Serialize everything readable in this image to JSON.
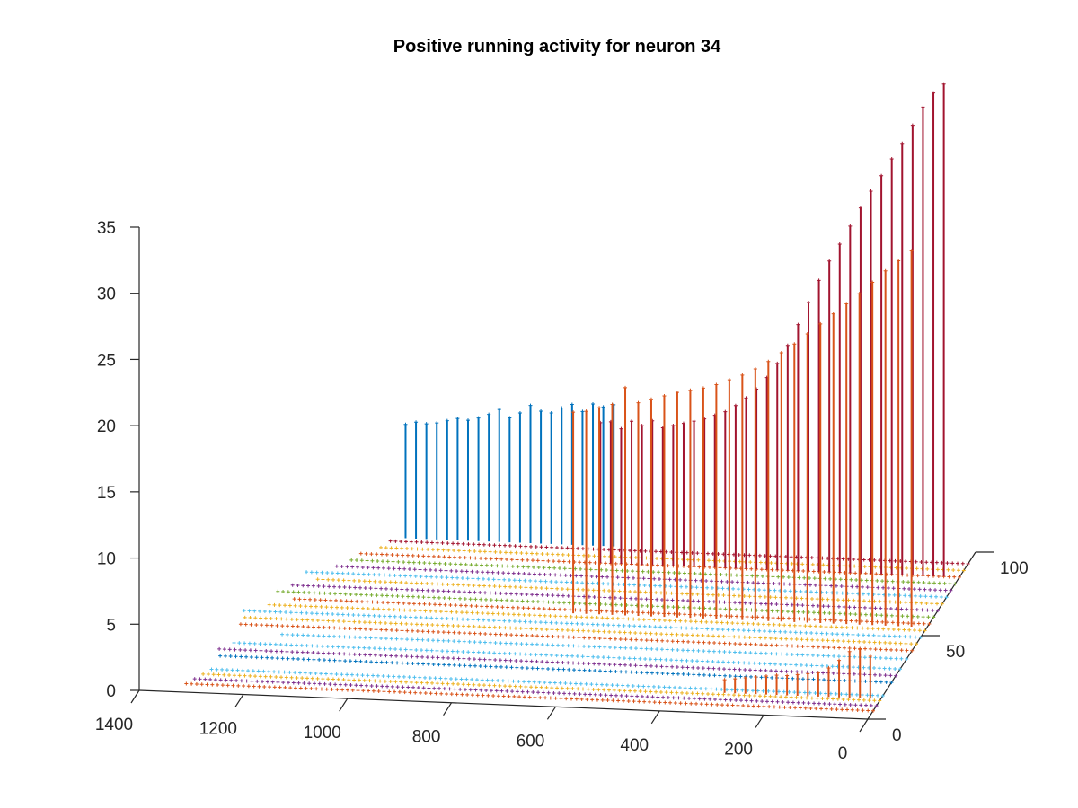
{
  "chart_data": {
    "type": "scatter",
    "title": "Positive running activity for neuron 34",
    "subtype": "3d stem plot",
    "xlabel": "",
    "ylabel": "",
    "zlabel": "",
    "grid": false,
    "axes": {
      "x": {
        "range": [
          0,
          1400
        ],
        "ticks": [
          0,
          200,
          400,
          600,
          800,
          1000,
          1200,
          1400
        ],
        "tick_labels": [
          "0",
          "200",
          "400",
          "600",
          "800",
          "1000",
          "1200",
          "1400"
        ]
      },
      "y": {
        "range": [
          0,
          100
        ],
        "ticks": [
          0,
          50,
          100
        ],
        "tick_labels": [
          "0",
          "50",
          "100"
        ]
      },
      "z": {
        "range": [
          0,
          35
        ],
        "ticks": [
          0,
          5,
          10,
          15,
          20,
          25,
          30,
          35
        ],
        "tick_labels": [
          "0",
          "5",
          "10",
          "15",
          "20",
          "25",
          "30",
          "35"
        ]
      }
    },
    "palette": [
      "#0072BD",
      "#D95319",
      "#EDB120",
      "#7E2F8E",
      "#77AC30",
      "#4DBEEE",
      "#A2142F"
    ],
    "stem_series": [
      {
        "color": "#0072BD",
        "y": 95,
        "x": [
          1085,
          1065,
          1045,
          1025,
          1005,
          985,
          965,
          945,
          925,
          905,
          885,
          865,
          845,
          825,
          805,
          785,
          765,
          745,
          725,
          705,
          685
        ],
        "z": [
          8.6,
          8.8,
          8.7,
          8.8,
          9.0,
          9.2,
          9.1,
          9.3,
          9.6,
          10.0,
          9.4,
          9.8,
          10.4,
          10.0,
          9.9,
          10.3,
          10.6,
          10.1,
          10.7,
          10.5,
          10.7
        ]
      },
      {
        "color": "#A2142F",
        "y": 85,
        "x": [
          690,
          670,
          650,
          630,
          610,
          590,
          570,
          550,
          530,
          510,
          490,
          470,
          450,
          430,
          410,
          390,
          370,
          350,
          330,
          310,
          290,
          270,
          250,
          230,
          210,
          190,
          170,
          150,
          130,
          110,
          90,
          70,
          50,
          30
        ],
        "z": [
          10.6,
          10.7,
          10.2,
          10.8,
          10.5,
          10.9,
          10.4,
          10.6,
          10.8,
          11.0,
          11.2,
          11.5,
          11.8,
          12.3,
          12.9,
          13.6,
          14.5,
          15.6,
          17.0,
          18.6,
          20.3,
          22.0,
          23.5,
          24.8,
          26.2,
          27.6,
          28.9,
          30.1,
          31.4,
          32.6,
          34.0,
          35.4,
          36.5,
          37.2
        ]
      },
      {
        "color": "#D95319",
        "y": 55,
        "x": [
          680,
          655,
          630,
          605,
          580,
          555,
          530,
          505,
          480,
          455,
          430,
          405,
          380,
          355,
          330,
          305,
          280,
          255,
          230,
          205,
          180,
          155,
          130,
          105,
          80,
          55,
          30
        ],
        "z": [
          15.2,
          15.3,
          15.6,
          15.9,
          17.2,
          16.1,
          16.4,
          16.7,
          17.0,
          17.2,
          17.4,
          17.7,
          18.1,
          18.5,
          19.0,
          19.6,
          20.3,
          21.0,
          21.8,
          22.6,
          23.4,
          24.2,
          25.0,
          25.9,
          26.8,
          27.6,
          28.4
        ]
      },
      {
        "color": "#D95319",
        "y": 12,
        "x": [
          300,
          280,
          260,
          240,
          220,
          200,
          180,
          160,
          140,
          120,
          100,
          80,
          60,
          40,
          20
        ],
        "z": [
          1.0,
          1.1,
          1.2,
          1.3,
          1.4,
          1.5,
          1.5,
          1.6,
          1.7,
          1.8,
          2.2,
          2.8,
          3.5,
          3.7,
          3.2
        ]
      }
    ],
    "flat_rows": [
      {
        "y": 5,
        "color": "#D95319",
        "x_start": 1320,
        "x_end": 0
      },
      {
        "y": 8,
        "color": "#7E2F8E",
        "x_start": 1310,
        "x_end": 0
      },
      {
        "y": 11,
        "color": "#EDB120",
        "x_start": 1300,
        "x_end": 0
      },
      {
        "y": 14,
        "color": "#4DBEEE",
        "x_start": 1290,
        "x_end": 0
      },
      {
        "y": 22,
        "color": "#0072BD",
        "x_start": 1290,
        "x_end": 0
      },
      {
        "y": 26,
        "color": "#7E2F8E",
        "x_start": 1300,
        "x_end": 0
      },
      {
        "y": 30,
        "color": "#4DBEEE",
        "x_start": 1280,
        "x_end": 0
      },
      {
        "y": 36,
        "color": "#4DBEEE",
        "x_start": 1200,
        "x_end": 0
      },
      {
        "y": 41,
        "color": "#D95319",
        "x_start": 1290,
        "x_end": 0
      },
      {
        "y": 45,
        "color": "#EDB120",
        "x_start": 1290,
        "x_end": 0
      },
      {
        "y": 49,
        "color": "#4DBEEE",
        "x_start": 1300,
        "x_end": 0
      },
      {
        "y": 53,
        "color": "#EDB120",
        "x_start": 1260,
        "x_end": 0
      },
      {
        "y": 57,
        "color": "#D95319",
        "x_start": 1220,
        "x_end": 0
      },
      {
        "y": 61,
        "color": "#77AC30",
        "x_start": 1260,
        "x_end": 0
      },
      {
        "y": 65,
        "color": "#7E2F8E",
        "x_start": 1240,
        "x_end": 0
      },
      {
        "y": 69,
        "color": "#EDB120",
        "x_start": 1200,
        "x_end": 0
      },
      {
        "y": 73,
        "color": "#4DBEEE",
        "x_start": 1230,
        "x_end": 0
      },
      {
        "y": 77,
        "color": "#7E2F8E",
        "x_start": 1180,
        "x_end": 0
      },
      {
        "y": 81,
        "color": "#77AC30",
        "x_start": 1160,
        "x_end": 0
      },
      {
        "y": 85,
        "color": "#D95319",
        "x_start": 1150,
        "x_end": 0
      },
      {
        "y": 89,
        "color": "#EDB120",
        "x_start": 1120,
        "x_end": 0
      },
      {
        "y": 93,
        "color": "#A2142F",
        "x_start": 1110,
        "x_end": 0
      }
    ]
  }
}
